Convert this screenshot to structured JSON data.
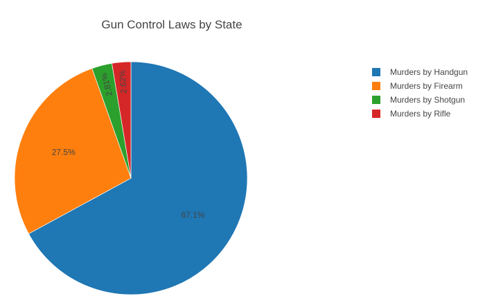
{
  "chart_data": {
    "type": "pie",
    "title": "Gun Control Laws by State",
    "legend_position": "right",
    "slices": [
      {
        "name": "Murders by Handgun",
        "value": 67.1,
        "label": "67.1%",
        "color": "#1f77b4"
      },
      {
        "name": "Murders by Firearm",
        "value": 27.5,
        "label": "27.5%",
        "color": "#ff7f0e"
      },
      {
        "name": "Murders by Shotgun",
        "value": 2.81,
        "label": "2.81%",
        "color": "#2ca02c"
      },
      {
        "name": "Murders by Rifle",
        "value": 2.62,
        "label": "2.62%",
        "color": "#d62728"
      }
    ]
  }
}
